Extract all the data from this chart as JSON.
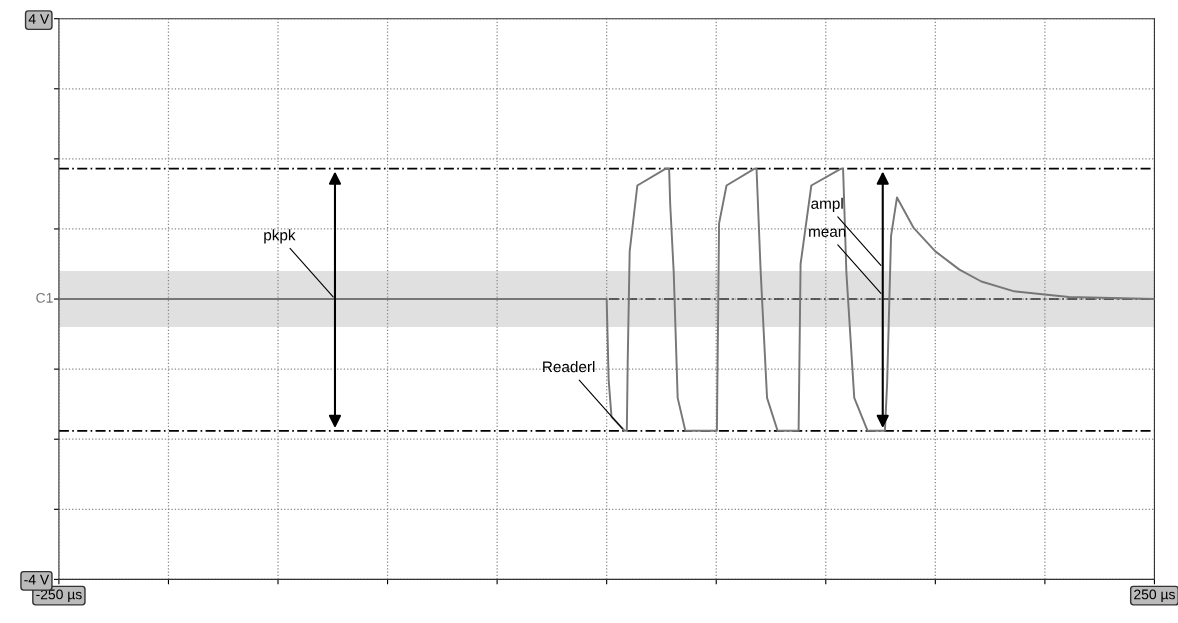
{
  "chart_data": {
    "type": "line",
    "x": [
      -250,
      0,
      0.9,
      2.2,
      8.3,
      9.2,
      9.6,
      10.5,
      14,
      27,
      28.5,
      29,
      30.6,
      32.4,
      35.9,
      50.3,
      51.3,
      54.7,
      67.5,
      68.4,
      70.3,
      73.2,
      78,
      87.6,
      88.5,
      93.4,
      107,
      107.9,
      109.4,
      113,
      119.1,
      127,
      128,
      129.8,
      132.5,
      140,
      150,
      161,
      171,
      186,
      201,
      211,
      250
    ],
    "series": [
      {
        "color": "#777777",
        "values": [
          0,
          0,
          -1.15,
          -1.68,
          -1.88,
          -1.88,
          -0.9,
          0.68,
          1.62,
          1.86,
          1.86,
          1.35,
          0.38,
          -1.41,
          -1.88,
          -1.88,
          1.08,
          1.62,
          1.86,
          1.86,
          0.38,
          -1.41,
          -1.88,
          -1.88,
          0.5,
          1.62,
          1.86,
          1.86,
          0.38,
          -1.41,
          -1.88,
          -1.88,
          -1.2,
          0.9,
          1.45,
          1.02,
          0.68,
          0.42,
          0.25,
          0.11,
          0.06,
          0.03,
          0
        ]
      }
    ],
    "xlim": [
      -250,
      250
    ],
    "xticks": [
      {
        "value": -250,
        "label": "-250 µs"
      },
      {
        "value": -200,
        "label": null
      },
      {
        "value": -150,
        "label": null
      },
      {
        "value": -100,
        "label": null
      },
      {
        "value": -50,
        "label": null
      },
      {
        "value": 0,
        "label": null
      },
      {
        "value": 50,
        "label": null
      },
      {
        "value": 100,
        "label": null
      },
      {
        "value": 150,
        "label": null
      },
      {
        "value": 200,
        "label": null
      },
      {
        "value": 250,
        "label": "250 µs"
      }
    ],
    "ylim": [
      -4,
      4
    ],
    "yticks": [
      {
        "value": -4,
        "label": "-4 V"
      },
      {
        "value": -3,
        "label": null
      },
      {
        "value": -2,
        "label": null
      },
      {
        "value": -1,
        "label": null
      },
      {
        "value": 0,
        "label": null
      },
      {
        "value": 1,
        "label": null
      },
      {
        "value": 2,
        "label": null
      },
      {
        "value": 3,
        "label": null
      },
      {
        "value": 4,
        "label": "4 V"
      }
    ],
    "grid": true,
    "line_style": "solid",
    "ref_lines": [
      {
        "axis": "y",
        "value": 1.86,
        "color": "#000000",
        "line_style": "dashed"
      },
      {
        "axis": "y",
        "value": -1.88,
        "color": "#000000",
        "line_style": "dashed"
      },
      {
        "axis": "y",
        "value": 0,
        "label": "C1",
        "color": "#333333",
        "line_style": "dashed"
      }
    ],
    "bands": [
      {
        "axis": "y",
        "from": -0.4,
        "to": 0.4,
        "color": "#e0e0e0"
      }
    ],
    "annotations": [
      {
        "text": "pkpk",
        "x": -124,
        "y": 0
      },
      {
        "text": "ampl",
        "x": 126,
        "y": 0.45
      },
      {
        "text": "mean",
        "x": 126,
        "y": 0.05
      },
      {
        "text": "Readerl",
        "x": 8,
        "y": -1.88
      }
    ]
  }
}
